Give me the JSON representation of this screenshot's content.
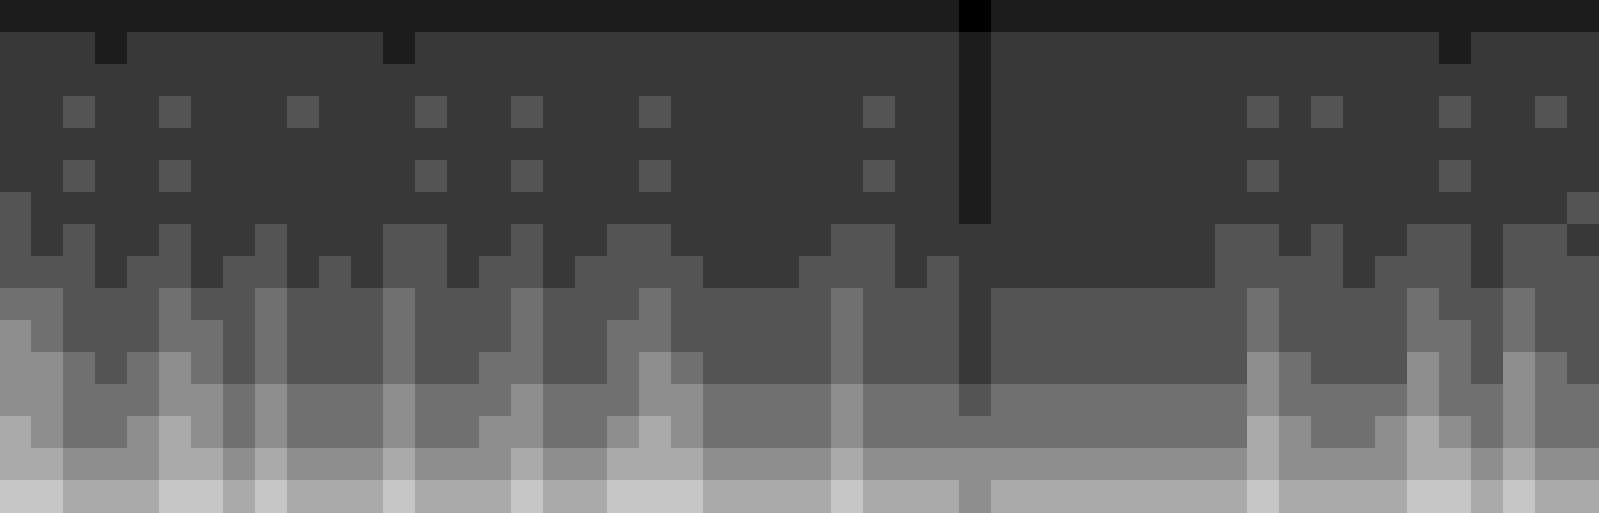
{
  "chart_data": {
    "type": "heatmap",
    "tick_labels": false,
    "color": "#ffffff",
    "zlim": [
      0,
      9
    ],
    "cells": [
      [
        1,
        1,
        1,
        1,
        1,
        1,
        1,
        1,
        1,
        1,
        1,
        1,
        1,
        1,
        1,
        1,
        1,
        1,
        1,
        1,
        1,
        1,
        1,
        1,
        1,
        1,
        1,
        1,
        1,
        1,
        0,
        1,
        1,
        1,
        1,
        1,
        1,
        1,
        1,
        1,
        1,
        1,
        1,
        1,
        1,
        1,
        1,
        1,
        1,
        1
      ],
      [
        2,
        2,
        2,
        1,
        2,
        2,
        2,
        2,
        2,
        2,
        2,
        2,
        1,
        2,
        2,
        2,
        2,
        2,
        2,
        2,
        2,
        2,
        2,
        2,
        2,
        2,
        2,
        2,
        2,
        2,
        1,
        2,
        2,
        2,
        2,
        2,
        2,
        2,
        2,
        2,
        2,
        2,
        2,
        2,
        2,
        1,
        2,
        2,
        2,
        2
      ],
      [
        2,
        2,
        2,
        2,
        2,
        2,
        2,
        2,
        2,
        2,
        2,
        2,
        2,
        2,
        2,
        2,
        2,
        2,
        2,
        2,
        2,
        2,
        2,
        2,
        2,
        2,
        2,
        2,
        2,
        2,
        1,
        2,
        2,
        2,
        2,
        2,
        2,
        2,
        2,
        2,
        2,
        2,
        2,
        2,
        2,
        2,
        2,
        2,
        2,
        2
      ],
      [
        2,
        2,
        3,
        2,
        2,
        3,
        2,
        2,
        2,
        3,
        2,
        2,
        2,
        3,
        2,
        2,
        3,
        2,
        2,
        2,
        3,
        2,
        2,
        2,
        2,
        2,
        2,
        3,
        2,
        2,
        1,
        2,
        2,
        2,
        2,
        2,
        2,
        2,
        2,
        3,
        2,
        3,
        2,
        2,
        2,
        3,
        2,
        2,
        3,
        2
      ],
      [
        2,
        2,
        2,
        2,
        2,
        2,
        2,
        2,
        2,
        2,
        2,
        2,
        2,
        2,
        2,
        2,
        2,
        2,
        2,
        2,
        2,
        2,
        2,
        2,
        2,
        2,
        2,
        2,
        2,
        2,
        1,
        2,
        2,
        2,
        2,
        2,
        2,
        2,
        2,
        2,
        2,
        2,
        2,
        2,
        2,
        2,
        2,
        2,
        2,
        2
      ],
      [
        2,
        2,
        3,
        2,
        2,
        3,
        2,
        2,
        2,
        2,
        2,
        2,
        2,
        3,
        2,
        2,
        3,
        2,
        2,
        2,
        3,
        2,
        2,
        2,
        2,
        2,
        2,
        3,
        2,
        2,
        1,
        2,
        2,
        2,
        2,
        2,
        2,
        2,
        2,
        3,
        2,
        2,
        2,
        2,
        2,
        3,
        2,
        2,
        2,
        2
      ],
      [
        3,
        2,
        2,
        2,
        2,
        2,
        2,
        2,
        2,
        2,
        2,
        2,
        2,
        2,
        2,
        2,
        2,
        2,
        2,
        2,
        2,
        2,
        2,
        2,
        2,
        2,
        2,
        2,
        2,
        2,
        1,
        2,
        2,
        2,
        2,
        2,
        2,
        2,
        2,
        2,
        2,
        2,
        2,
        2,
        2,
        2,
        2,
        2,
        2,
        3
      ],
      [
        3,
        2,
        3,
        2,
        2,
        3,
        2,
        2,
        3,
        2,
        2,
        2,
        3,
        3,
        2,
        2,
        3,
        2,
        2,
        3,
        3,
        2,
        2,
        2,
        2,
        2,
        3,
        3,
        2,
        2,
        2,
        2,
        2,
        2,
        2,
        2,
        2,
        2,
        3,
        3,
        2,
        3,
        2,
        2,
        3,
        3,
        2,
        3,
        3,
        2
      ],
      [
        3,
        3,
        3,
        2,
        3,
        3,
        2,
        3,
        3,
        2,
        3,
        2,
        3,
        3,
        2,
        3,
        3,
        2,
        3,
        3,
        3,
        3,
        2,
        2,
        2,
        3,
        3,
        3,
        2,
        3,
        2,
        2,
        2,
        2,
        2,
        2,
        2,
        2,
        3,
        3,
        3,
        3,
        2,
        3,
        3,
        3,
        2,
        3,
        3,
        3
      ],
      [
        4,
        4,
        3,
        3,
        3,
        4,
        3,
        3,
        4,
        3,
        3,
        3,
        4,
        3,
        3,
        3,
        4,
        3,
        3,
        3,
        4,
        3,
        3,
        3,
        3,
        3,
        4,
        3,
        3,
        3,
        2,
        3,
        3,
        3,
        3,
        3,
        3,
        3,
        3,
        4,
        3,
        3,
        3,
        3,
        4,
        3,
        3,
        4,
        3,
        3
      ],
      [
        5,
        4,
        3,
        3,
        3,
        4,
        4,
        3,
        4,
        3,
        3,
        3,
        4,
        3,
        3,
        3,
        4,
        3,
        3,
        4,
        4,
        3,
        3,
        3,
        3,
        3,
        4,
        3,
        3,
        3,
        2,
        3,
        3,
        3,
        3,
        3,
        3,
        3,
        3,
        4,
        3,
        3,
        3,
        3,
        4,
        4,
        3,
        4,
        3,
        3
      ],
      [
        5,
        5,
        4,
        3,
        4,
        5,
        4,
        3,
        4,
        3,
        3,
        3,
        4,
        3,
        3,
        4,
        4,
        3,
        3,
        4,
        5,
        4,
        3,
        3,
        3,
        3,
        4,
        3,
        3,
        3,
        2,
        3,
        3,
        3,
        3,
        3,
        3,
        3,
        3,
        5,
        4,
        3,
        3,
        3,
        5,
        4,
        3,
        5,
        4,
        3
      ],
      [
        5,
        5,
        4,
        4,
        4,
        5,
        5,
        4,
        5,
        4,
        4,
        4,
        5,
        4,
        4,
        4,
        5,
        4,
        4,
        4,
        5,
        5,
        4,
        4,
        4,
        4,
        5,
        4,
        4,
        4,
        3,
        4,
        4,
        4,
        4,
        4,
        4,
        4,
        4,
        5,
        4,
        4,
        4,
        4,
        5,
        4,
        4,
        5,
        4,
        4
      ],
      [
        6,
        5,
        4,
        4,
        5,
        6,
        5,
        4,
        5,
        4,
        4,
        4,
        5,
        4,
        4,
        5,
        5,
        4,
        4,
        5,
        6,
        5,
        4,
        4,
        4,
        4,
        5,
        4,
        4,
        4,
        4,
        4,
        4,
        4,
        4,
        4,
        4,
        4,
        4,
        6,
        5,
        4,
        4,
        5,
        6,
        5,
        4,
        5,
        4,
        4
      ],
      [
        6,
        6,
        5,
        5,
        5,
        6,
        6,
        5,
        6,
        5,
        5,
        5,
        6,
        5,
        5,
        5,
        6,
        5,
        5,
        6,
        6,
        6,
        5,
        5,
        5,
        5,
        6,
        5,
        5,
        5,
        5,
        5,
        5,
        5,
        5,
        5,
        5,
        5,
        5,
        6,
        5,
        5,
        5,
        5,
        6,
        6,
        5,
        6,
        5,
        5
      ],
      [
        7,
        7,
        6,
        6,
        6,
        7,
        7,
        6,
        7,
        6,
        6,
        6,
        7,
        6,
        6,
        6,
        7,
        6,
        6,
        7,
        7,
        7,
        6,
        6,
        6,
        6,
        7,
        6,
        6,
        6,
        5,
        6,
        6,
        6,
        6,
        6,
        6,
        6,
        6,
        7,
        6,
        6,
        6,
        6,
        7,
        7,
        6,
        7,
        6,
        6
      ]
    ]
  }
}
